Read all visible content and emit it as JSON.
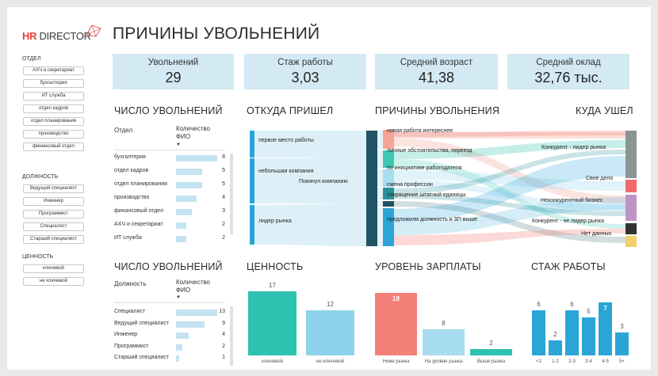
{
  "header": {
    "logo_hr": "HR",
    "logo_director": " DIRECTOR",
    "title": "ПРИЧИНЫ УВОЛЬНЕНИЙ"
  },
  "filters": {
    "department": {
      "label": "ОТДЕЛ",
      "items": [
        "АХЧ и секретариат",
        "бухгалтерия",
        "ИТ служба",
        "отдел кадров",
        "отдел планирования",
        "производство",
        "финансовый отдел"
      ]
    },
    "position": {
      "label": "ДОЛЖНОСТЬ",
      "items": [
        "Ведущий специалист",
        "Инженер",
        "Программист",
        "Специалист",
        "Старший специалист"
      ]
    },
    "value": {
      "label": "ЦЕННОСТЬ",
      "items": [
        "ключевой",
        "не ключевой"
      ]
    }
  },
  "kpis": [
    {
      "label": "Увольнений",
      "value": "29"
    },
    {
      "label": "Стаж работы",
      "value": "3,03"
    },
    {
      "label": "Средний возраст",
      "value": "41,38"
    },
    {
      "label": "Средний оклад",
      "value": "32,76 тыс."
    }
  ],
  "dept_table": {
    "title": "ЧИСЛО УВОЛЬНЕНИЙ",
    "col1": "Отдел",
    "col2": "Количество ФИО",
    "max": 8,
    "rows": [
      {
        "name": "бухгалтерия",
        "value": 8
      },
      {
        "name": "отдел кадров",
        "value": 5
      },
      {
        "name": "отдел планирования",
        "value": 5
      },
      {
        "name": "производство",
        "value": 4
      },
      {
        "name": "финансовый отдел",
        "value": 3
      },
      {
        "name": "АХЧ и секретариат",
        "value": 2
      },
      {
        "name": "ИТ служба",
        "value": 2
      }
    ]
  },
  "pos_table": {
    "title": "ЧИСЛО УВОЛЬНЕНИЙ",
    "col1": "Должность",
    "col2": "Количество ФИО",
    "max": 13,
    "rows": [
      {
        "name": "Специалист",
        "value": 13
      },
      {
        "name": "Ведущий специалист",
        "value": 9
      },
      {
        "name": "Инженер",
        "value": 4
      },
      {
        "name": "Программист",
        "value": 2
      },
      {
        "name": "Старший специалист",
        "value": 1
      }
    ]
  },
  "sankey": {
    "title_from": "ОТКУДА ПРИШЕЛ",
    "title_reasons": "ПРИЧИНЫ УВОЛЬНЕНИЯ",
    "title_to": "КУДА УШЕЛ",
    "from_nodes": [
      "первое место работы",
      "небольшая компания",
      "лидер рынка"
    ],
    "middle_node": "Покинул компанию",
    "reason_nodes": [
      "новая работа интереснее",
      "личные обстоятельства, переезд",
      "по инициативе работодателя",
      "смена профессии",
      "сокращение штатной единицы",
      "предложили должность и ЗП выше"
    ],
    "to_nodes": [
      "Конкурент - лидер рынка",
      "Свое дело",
      "Неконкурентный бизнес",
      "Конкурент - не лидер рынка",
      "Нет данных"
    ],
    "colors": {
      "from": "#2aa5d6",
      "mid": "#1f5365",
      "reasons": [
        "#f3a695",
        "#40c6b5",
        "#a8dcf0",
        "#2a8f9a",
        "#1f5365",
        "#2aa5d6"
      ],
      "to": [
        "#8a9692",
        "#f06a6a",
        "#bf93c1",
        "#333333",
        "#f2d06b"
      ]
    }
  },
  "value_chart": {
    "title": "ЦЕННОСТЬ",
    "chart_data": {
      "type": "bar",
      "categories": [
        "ключевой",
        "не ключевой"
      ],
      "values": [
        17,
        12
      ],
      "colors": [
        "#2ec2b0",
        "#8fd3ea"
      ]
    }
  },
  "salary_chart": {
    "title": "УРОВЕНЬ ЗАРПЛАТЫ",
    "chart_data": {
      "type": "bar",
      "categories": [
        "Ниже рынка",
        "На уровне рынка",
        "Выше рынка"
      ],
      "values": [
        19,
        8,
        2
      ],
      "colors": [
        "#f48179",
        "#a8dcf0",
        "#2ec2b0"
      ]
    }
  },
  "tenure_chart": {
    "title": "СТАЖ РАБОТЫ",
    "chart_data": {
      "type": "bar",
      "categories": [
        "<1",
        "1-2",
        "2-3",
        "3-4",
        "4-5",
        "5+"
      ],
      "values": [
        6,
        2,
        6,
        5,
        7,
        3
      ],
      "colors": [
        "#2aa5d6"
      ]
    }
  }
}
